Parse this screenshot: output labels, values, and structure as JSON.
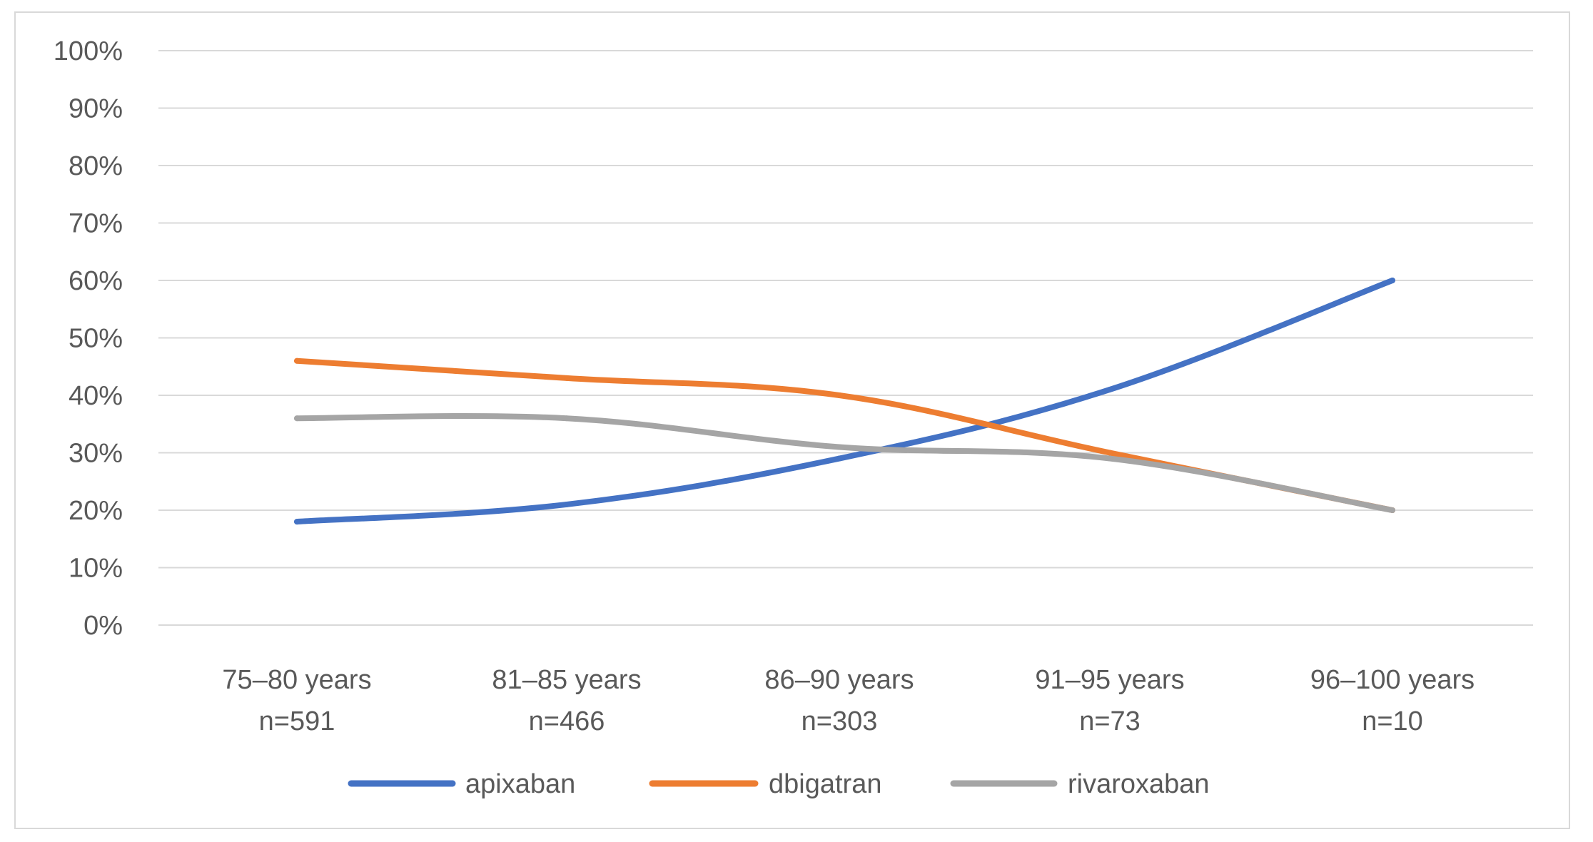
{
  "chart_data": {
    "type": "line",
    "title": "",
    "xlabel": "",
    "ylabel": "",
    "ylim": [
      0,
      100
    ],
    "y_ticks": [
      "0%",
      "10%",
      "20%",
      "30%",
      "40%",
      "50%",
      "60%",
      "70%",
      "80%",
      "90%",
      "100%"
    ],
    "grid": true,
    "legend_position": "bottom",
    "categories": [
      {
        "label": "75–80 years",
        "n": "n=591"
      },
      {
        "label": "81–85 years",
        "n": "n=466"
      },
      {
        "label": "86–90 years",
        "n": "n=303"
      },
      {
        "label": "91–95 years",
        "n": "n=73"
      },
      {
        "label": "96–100 years",
        "n": "n=10"
      }
    ],
    "series": [
      {
        "name": "apixaban",
        "color": "#4472c4",
        "values": [
          18,
          21,
          29,
          41,
          60
        ]
      },
      {
        "name": "dbigatran",
        "color": "#ed7d31",
        "values": [
          46,
          43,
          40,
          30,
          20
        ]
      },
      {
        "name": "rivaroxaban",
        "color": "#a5a5a5",
        "values": [
          36,
          36,
          31,
          29,
          20
        ]
      }
    ]
  }
}
